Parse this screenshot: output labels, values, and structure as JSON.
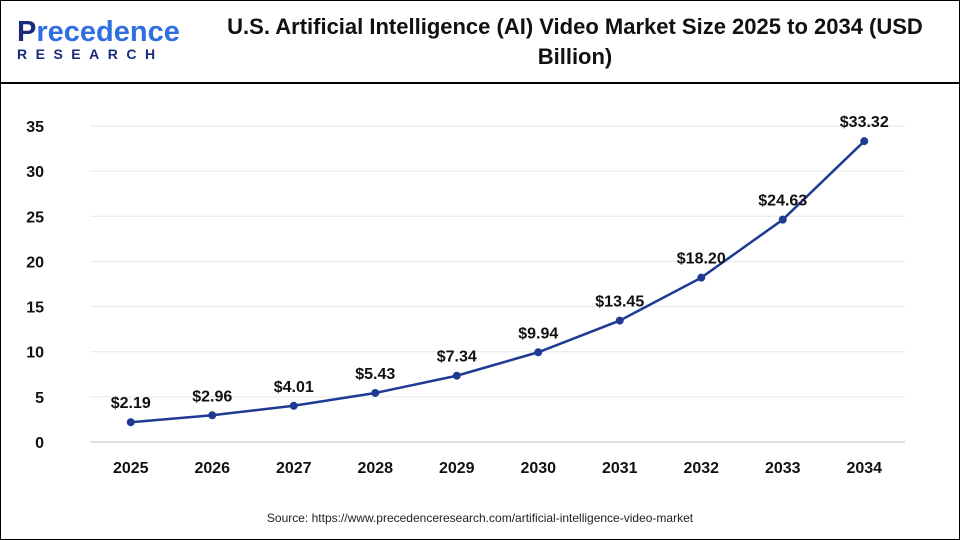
{
  "logo": {
    "main_prefix": "P",
    "main_rest": "recedence",
    "sub": "RESEARCH"
  },
  "colors": {
    "line": "#1f3a93",
    "grid": "#e6e6e6",
    "logo_dark": "#1b2a7a",
    "logo_light": "#2f6fe0"
  },
  "source": "Source: https://www.precedenceresearch.com/artificial-intelligence-video-market",
  "chart_data": {
    "type": "line",
    "title": "U.S. Artificial Intelligence (AI) Video Market Size 2025 to 2034 (USD Billion)",
    "categories": [
      "2025",
      "2026",
      "2027",
      "2028",
      "2029",
      "2030",
      "2031",
      "2032",
      "2033",
      "2034"
    ],
    "values": [
      2.19,
      2.96,
      4.01,
      5.43,
      7.34,
      9.94,
      13.45,
      18.2,
      24.63,
      33.32
    ],
    "data_labels": [
      "$2.19",
      "$2.96",
      "$4.01",
      "$5.43",
      "$7.34",
      "$9.94",
      "$13.45",
      "$18.20",
      "$24.63",
      "$33.32"
    ],
    "ylim": [
      0,
      35
    ],
    "yticks": [
      0,
      5,
      10,
      15,
      20,
      25,
      30,
      35
    ],
    "grid": true,
    "xlabel": "",
    "ylabel": ""
  }
}
